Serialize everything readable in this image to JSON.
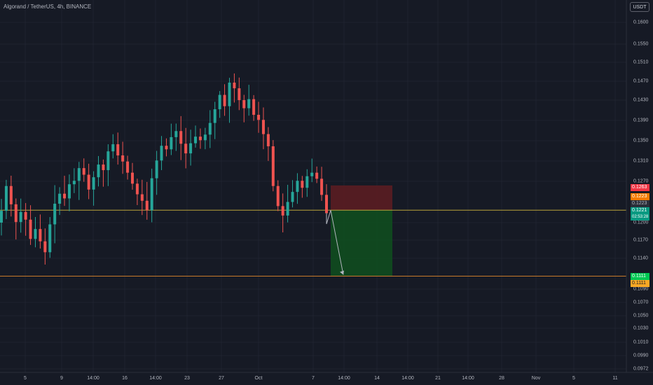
{
  "header": {
    "symbol_title": "Algorand / TetherUS, 4h, BINANCE",
    "currency_label": "USDT"
  },
  "colors": {
    "background": "#161a25",
    "up": "#26a69a",
    "down": "#ef5350",
    "stop_zone": "#5a1d22",
    "target_zone": "#0f4d1f",
    "hline": "#c8792a",
    "entry_line": "#b8a23a"
  },
  "price_axis": {
    "ticks": [
      "0.1600",
      "0.1550",
      "0.1510",
      "0.1470",
      "0.1430",
      "0.1390",
      "0.1350",
      "0.1310",
      "0.1270",
      "0.1200",
      "0.1170",
      "0.1140",
      "0.1090",
      "0.1070",
      "0.1050",
      "0.1030",
      "0.1010",
      "0.0990",
      "0.0972"
    ],
    "tags": {
      "stop": "0.1263",
      "alert_1": "0.1223",
      "current_1": "0.1223",
      "current_price": "0.1221",
      "countdown": "02:53:28",
      "target_1": "0.1111",
      "target_2": "0.1111"
    }
  },
  "time_axis": {
    "ticks": [
      "5",
      "9",
      "14:00",
      "16",
      "14:00",
      "23",
      "27",
      "Oct",
      "7",
      "14:00",
      "14",
      "14:00",
      "21",
      "14:00",
      "28",
      "Nov",
      "5",
      "11"
    ]
  },
  "chart_data": {
    "type": "candlestick",
    "timeframe": "4h",
    "price_range": [
      0.0972,
      0.16
    ],
    "closes": [
      0.122,
      0.1262,
      0.1231,
      0.1201,
      0.1218,
      0.1205,
      0.1172,
      0.1189,
      0.1168,
      0.115,
      0.1197,
      0.1232,
      0.1249,
      0.1241,
      0.1265,
      0.1271,
      0.1296,
      0.1283,
      0.1256,
      0.1278,
      0.1303,
      0.1292,
      0.1329,
      0.1343,
      0.1321,
      0.1309,
      0.1287,
      0.1266,
      0.1248,
      0.1237,
      0.1221,
      0.1276,
      0.1311,
      0.134,
      0.1333,
      0.1357,
      0.1369,
      0.1344,
      0.1325,
      0.1345,
      0.1358,
      0.1351,
      0.1362,
      0.1385,
      0.1412,
      0.1441,
      0.1418,
      0.1467,
      0.1455,
      0.143,
      0.1414,
      0.1432,
      0.1401,
      0.1391,
      0.1363,
      0.1339,
      0.1262,
      0.1228,
      0.1212,
      0.1235,
      0.1252,
      0.1271,
      0.1259,
      0.128,
      0.1287,
      0.1275,
      0.1247,
      0.1216
    ],
    "trade_setup": {
      "entry": 0.1221,
      "stop": 0.1263,
      "target": 0.1111,
      "horizontal_levels": [
        0.1221,
        0.1111
      ]
    }
  }
}
